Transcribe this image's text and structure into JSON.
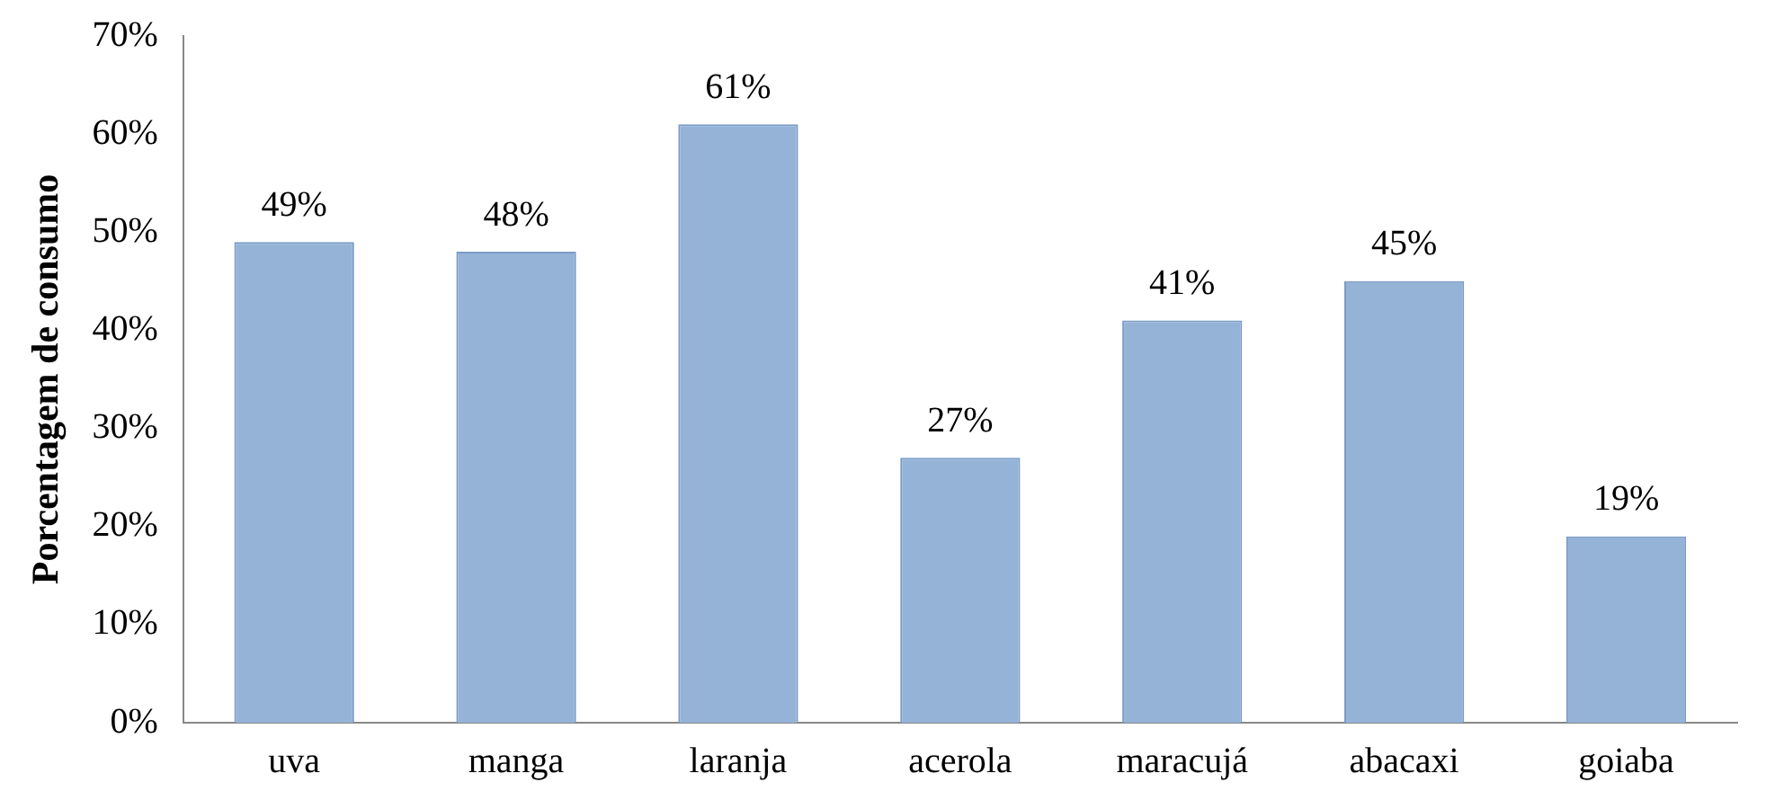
{
  "chart_data": {
    "type": "bar",
    "ylabel": "Porcentagem de consumo",
    "categories": [
      "uva",
      "manga",
      "laranja",
      "acerola",
      "maracujá",
      "abacaxi",
      "goiaba"
    ],
    "values": [
      49,
      48,
      61,
      27,
      41,
      45,
      19
    ],
    "value_labels": [
      "49%",
      "48%",
      "61%",
      "27%",
      "41%",
      "45%",
      "19%"
    ],
    "color": "#95b3d7",
    "ylim": [
      0,
      70
    ],
    "yticks": [
      {
        "value": 0,
        "label": "0%"
      },
      {
        "value": 10,
        "label": "10%"
      },
      {
        "value": 20,
        "label": "20%"
      },
      {
        "value": 30,
        "label": "30%"
      },
      {
        "value": 40,
        "label": "40%"
      },
      {
        "value": 50,
        "label": "50%"
      },
      {
        "value": 60,
        "label": "60%"
      },
      {
        "value": 70,
        "label": "70%"
      }
    ],
    "grid": false,
    "legend": false
  }
}
